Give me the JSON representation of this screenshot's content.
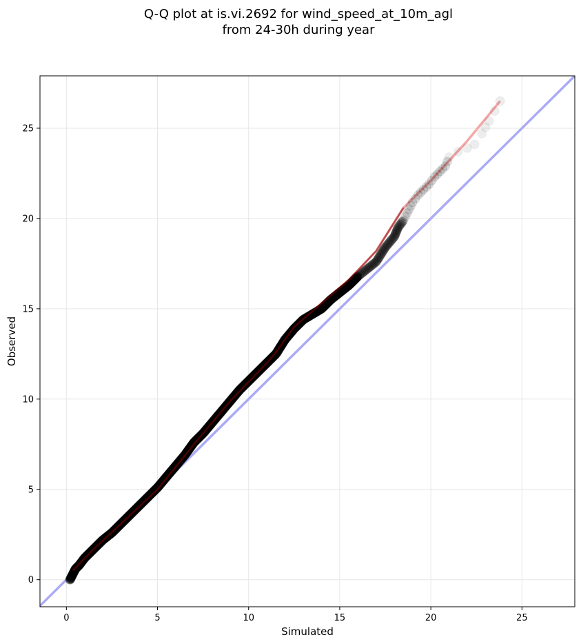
{
  "chart_data": {
    "type": "scatter",
    "title": [
      "Q-Q plot at is.vi.2692 for wind_speed_at_10m_agl",
      "from 24-30h during year"
    ],
    "xlabel": "Simulated",
    "ylabel": "Observed",
    "xlim": [
      -1.45,
      27.9
    ],
    "ylim": [
      -1.5,
      27.9
    ],
    "xticks": [
      0,
      5,
      10,
      15,
      20,
      25
    ],
    "yticks": [
      0,
      5,
      10,
      15,
      20,
      25
    ],
    "grid": true,
    "colors": {
      "points": "#000000",
      "identity_line": "#aaaaf5",
      "fit_line": "#f5a8a8",
      "fit_line_dense": "#8b0000",
      "identity_dense": "#1a1a99"
    },
    "series": [
      {
        "kind": "reference",
        "role": "identity",
        "x": [
          -1.45,
          27.9
        ],
        "y": [
          -1.45,
          27.9
        ]
      },
      {
        "kind": "reference",
        "role": "fit",
        "x": [
          0.35,
          1.5,
          3.0,
          5.0,
          7.0,
          9.0,
          11.0,
          11.5,
          12.5,
          14.0,
          15.5,
          17.0,
          18.5,
          20.0,
          22.0,
          23.8
        ],
        "y": [
          0.5,
          1.7,
          3.1,
          5.0,
          7.5,
          9.9,
          12.0,
          12.6,
          14.0,
          15.3,
          16.6,
          18.2,
          20.6,
          22.1,
          24.3,
          26.5
        ]
      },
      {
        "kind": "quantiles",
        "x": [
          0.2,
          0.3,
          0.4,
          0.5,
          0.7,
          1.0,
          1.5,
          2.0,
          2.5,
          3.0,
          3.5,
          4.0,
          4.5,
          5.0,
          5.5,
          6.0,
          6.5,
          7.0,
          7.5,
          8.0,
          8.5,
          9.0,
          9.5,
          10.0,
          10.5,
          11.0,
          11.5,
          12.0,
          12.5,
          13.0,
          13.5,
          14.0,
          14.5,
          15.0,
          15.5,
          16.0,
          16.5,
          17.0,
          17.5,
          18.0,
          18.2,
          18.5,
          18.8,
          19.0,
          19.3,
          19.6,
          19.9,
          20.2,
          20.5,
          20.8,
          21.0,
          21.5,
          22.0,
          22.4,
          22.8,
          23.2,
          23.8
        ],
        "y": [
          0.0,
          0.2,
          0.4,
          0.6,
          0.8,
          1.2,
          1.7,
          2.2,
          2.6,
          3.1,
          3.6,
          4.1,
          4.6,
          5.1,
          5.7,
          6.3,
          6.9,
          7.6,
          8.1,
          8.7,
          9.3,
          9.9,
          10.5,
          11.0,
          11.5,
          12.0,
          12.5,
          13.3,
          13.9,
          14.4,
          14.7,
          15.0,
          15.5,
          15.9,
          16.3,
          16.8,
          17.2,
          17.6,
          18.4,
          19.0,
          19.5,
          19.9,
          20.5,
          20.9,
          21.3,
          21.6,
          21.9,
          22.3,
          22.6,
          22.9,
          23.4,
          23.7,
          23.9,
          24.1,
          24.7,
          25.4,
          26.5
        ]
      }
    ]
  }
}
